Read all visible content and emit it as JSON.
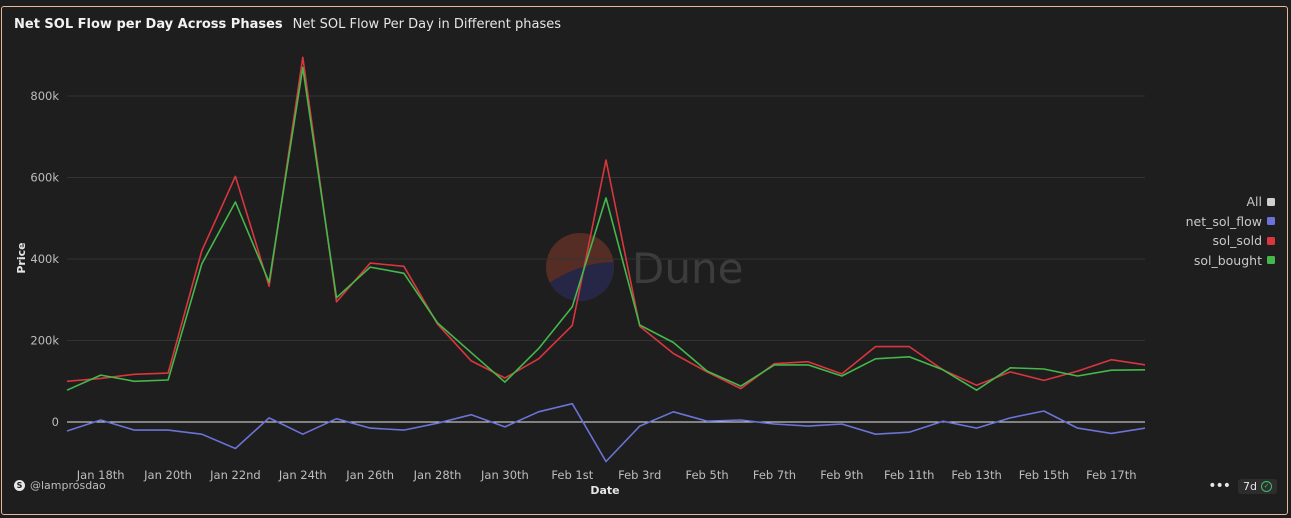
{
  "header": {
    "title": "Net SOL Flow per Day Across Phases",
    "subtitle": "Net SOL Flow Per Day in Different phases"
  },
  "footer": {
    "credit": "@lamprosdao",
    "time_range": "7d"
  },
  "watermark": "Dune",
  "legend": {
    "all_label": "All",
    "all_color": "#cfcfcf"
  },
  "chart_data": {
    "type": "line",
    "xlabel": "Date",
    "ylabel": "Price",
    "ylim": [
      -100000,
      930000
    ],
    "y_ticks": [
      0,
      200000,
      400000,
      600000,
      800000
    ],
    "y_tick_labels": [
      "0",
      "200k",
      "400k",
      "600k",
      "800k"
    ],
    "x_start": "2025-01-17",
    "x_end": "2025-02-18",
    "x_ticks": [
      "2025-01-18",
      "2025-01-20",
      "2025-01-22",
      "2025-01-24",
      "2025-01-26",
      "2025-01-28",
      "2025-01-30",
      "2025-02-01",
      "2025-02-03",
      "2025-02-05",
      "2025-02-07",
      "2025-02-09",
      "2025-02-11",
      "2025-02-13",
      "2025-02-15",
      "2025-02-17"
    ],
    "x_tick_labels": [
      "Jan 18th",
      "Jan 20th",
      "Jan 22nd",
      "Jan 24th",
      "Jan 26th",
      "Jan 28th",
      "Jan 30th",
      "Feb 1st",
      "Feb 3rd",
      "Feb 5th",
      "Feb 7th",
      "Feb 9th",
      "Feb 11th",
      "Feb 13th",
      "Feb 15th",
      "Feb 17th"
    ],
    "grid": true,
    "legend_position": "right",
    "x": [
      "2025-01-17",
      "2025-01-18",
      "2025-01-19",
      "2025-01-20",
      "2025-01-21",
      "2025-01-22",
      "2025-01-23",
      "2025-01-24",
      "2025-01-25",
      "2025-01-26",
      "2025-01-27",
      "2025-01-28",
      "2025-01-29",
      "2025-01-30",
      "2025-01-31",
      "2025-02-01",
      "2025-02-02",
      "2025-02-03",
      "2025-02-04",
      "2025-02-05",
      "2025-02-06",
      "2025-02-07",
      "2025-02-08",
      "2025-02-09",
      "2025-02-10",
      "2025-02-11",
      "2025-02-12",
      "2025-02-13",
      "2025-02-14",
      "2025-02-15",
      "2025-02-16",
      "2025-02-17",
      "2025-02-18"
    ],
    "series": [
      {
        "name": "net_sol_flow",
        "color": "#6b73d6",
        "values": [
          -22000,
          5000,
          -20000,
          -20000,
          -30000,
          -65000,
          10000,
          -30000,
          8000,
          -15000,
          -20000,
          -3000,
          18000,
          -12000,
          25000,
          45000,
          -97000,
          -10000,
          25000,
          2000,
          5000,
          -5000,
          -10000,
          -5000,
          -30000,
          -25000,
          2000,
          -15000,
          10000,
          27000,
          -15000,
          -28000,
          -15000
        ]
      },
      {
        "name": "sol_sold",
        "color": "#d9363e",
        "values": [
          100000,
          107000,
          117000,
          120000,
          420000,
          603000,
          333000,
          895000,
          295000,
          390000,
          382000,
          240000,
          150000,
          108000,
          155000,
          237000,
          643000,
          235000,
          168000,
          123000,
          82000,
          143000,
          148000,
          118000,
          185000,
          185000,
          128000,
          90000,
          123000,
          102000,
          125000,
          153000,
          140000
        ]
      },
      {
        "name": "sol_bought",
        "color": "#44b84a",
        "values": [
          78000,
          115000,
          100000,
          103000,
          388000,
          540000,
          343000,
          870000,
          305000,
          380000,
          365000,
          243000,
          170000,
          98000,
          180000,
          283000,
          550000,
          238000,
          195000,
          125000,
          88000,
          140000,
          140000,
          113000,
          155000,
          160000,
          128000,
          78000,
          133000,
          130000,
          113000,
          127000,
          128000
        ]
      }
    ]
  }
}
